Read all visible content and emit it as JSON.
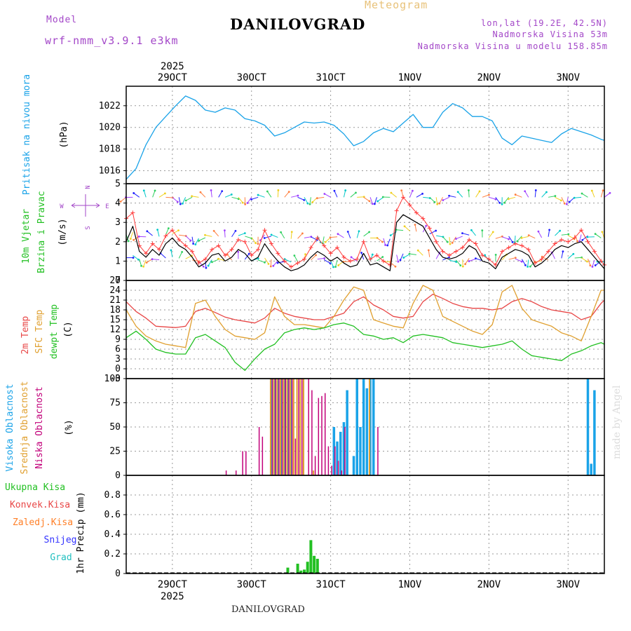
{
  "header": {
    "meteogram_label": "Meteogram",
    "station": "DANILOVGRAD",
    "model_label": "Model",
    "model_name": "wrf-nmm_v3.9.1 e3km",
    "lonlat": "lon,lat (19.2E, 42.5N)",
    "elevation": "Nadmorska Visina 53m",
    "model_elevation": "Nadmorska Visina u modelu 158.85m"
  },
  "footer": {
    "station": "DANILOVGRAD",
    "made_by": "made by Angel"
  },
  "colors": {
    "pressure": "#1aa3e8",
    "wind_speed": "#000000",
    "wind_gust": "#ff3b3b",
    "t2m": "#e84646",
    "tsfc": "#e0a030",
    "dewpt": "#22c022",
    "high_cloud": "#1aa3e8",
    "mid_cloud": "#e0a030",
    "low_cloud": "#c2007a",
    "precip_total": "#22c022",
    "precip_conv": "#e84646",
    "precip_freezing": "#ff7f27",
    "snow": "#3333ff",
    "hail": "#22c0c0"
  },
  "chart_data": [
    {
      "type": "line",
      "title": "Pritisak na nivou mora",
      "ylabel": "(hPa)",
      "ylim": [
        1014.8,
        1023.8
      ],
      "yticks": [
        "1016",
        "1018",
        "1020",
        "1022"
      ],
      "time_axis": {
        "start_hour": 0,
        "end_hour": 145,
        "year": "2025",
        "day_labels": [
          "29OCT",
          "30OCT",
          "31OCT",
          "1NOV",
          "2NOV",
          "3NOV"
        ],
        "day_hours": [
          14,
          38,
          62,
          86,
          110,
          134
        ]
      },
      "x": [
        0,
        3,
        6,
        9,
        12,
        15,
        18,
        21,
        24,
        27,
        30,
        33,
        36,
        39,
        42,
        45,
        48,
        51,
        54,
        57,
        60,
        63,
        66,
        69,
        72,
        75,
        78,
        81,
        84,
        87,
        90,
        93,
        96,
        99,
        102,
        105,
        108,
        111,
        114,
        117,
        120,
        123,
        126,
        129,
        132,
        135,
        138,
        141,
        144,
        145
      ],
      "values": [
        1015.2,
        1016.2,
        1018.4,
        1020.0,
        1021.0,
        1022.0,
        1022.9,
        1022.5,
        1021.6,
        1021.4,
        1021.8,
        1021.6,
        1020.8,
        1020.6,
        1020.2,
        1019.2,
        1019.5,
        1020.0,
        1020.5,
        1020.4,
        1020.5,
        1020.2,
        1019.4,
        1018.3,
        1018.7,
        1019.5,
        1019.9,
        1019.6,
        1020.4,
        1021.2,
        1020.0,
        1020.0,
        1021.4,
        1022.2,
        1021.8,
        1021.0,
        1021.0,
        1020.6,
        1019.0,
        1018.4,
        1019.2,
        1019.0,
        1018.8,
        1018.6,
        1019.4,
        1019.9,
        1019.6,
        1019.3,
        1018.9,
        1018.8
      ]
    },
    {
      "type": "line",
      "title": "10m Vjetar Brzina i Pravac",
      "ylabel": "(m/s)",
      "ylim": [
        0,
        5
      ],
      "yticks": [
        "0",
        "1",
        "2",
        "3",
        "4",
        "5"
      ],
      "compass": {
        "north": "N",
        "south": "S",
        "west": "W",
        "east": "E"
      },
      "series": [
        {
          "name": "speed",
          "x": [
            0,
            2,
            4,
            6,
            8,
            10,
            12,
            14,
            16,
            18,
            20,
            22,
            24,
            26,
            28,
            30,
            32,
            34,
            36,
            38,
            40,
            42,
            44,
            46,
            48,
            50,
            52,
            54,
            56,
            58,
            60,
            62,
            64,
            66,
            68,
            70,
            72,
            74,
            76,
            78,
            80,
            82,
            84,
            86,
            88,
            90,
            92,
            94,
            96,
            98,
            100,
            102,
            104,
            106,
            108,
            110,
            112,
            114,
            116,
            118,
            120,
            122,
            124,
            126,
            128,
            130,
            132,
            134,
            136,
            138,
            140,
            142,
            144,
            145
          ],
          "values": [
            2.0,
            2.8,
            1.5,
            1.2,
            1.6,
            1.3,
            1.9,
            2.2,
            1.8,
            1.6,
            1.2,
            0.7,
            0.9,
            1.3,
            1.4,
            1.0,
            1.2,
            1.6,
            1.4,
            1.0,
            1.2,
            1.9,
            1.4,
            1.0,
            0.7,
            0.5,
            0.6,
            0.8,
            1.2,
            1.5,
            1.3,
            1.0,
            1.2,
            0.9,
            0.7,
            0.8,
            1.4,
            0.8,
            0.9,
            0.7,
            0.5,
            3.0,
            3.4,
            3.2,
            3.0,
            2.8,
            2.2,
            1.6,
            1.2,
            1.1,
            1.2,
            1.4,
            1.8,
            1.6,
            1.0,
            0.9,
            0.6,
            1.2,
            1.4,
            1.6,
            1.5,
            1.3,
            0.7,
            0.9,
            1.2,
            1.6,
            1.8,
            1.7,
            1.9,
            2.0,
            1.6,
            1.2,
            0.8,
            0.6
          ]
        },
        {
          "name": "gust",
          "x": [
            0,
            2,
            4,
            6,
            8,
            10,
            12,
            14,
            16,
            18,
            20,
            22,
            24,
            26,
            28,
            30,
            32,
            34,
            36,
            38,
            40,
            42,
            44,
            46,
            48,
            50,
            52,
            54,
            56,
            58,
            60,
            62,
            64,
            66,
            68,
            70,
            72,
            74,
            76,
            78,
            80,
            82,
            84,
            86,
            88,
            90,
            92,
            94,
            96,
            98,
            100,
            102,
            104,
            106,
            108,
            110,
            112,
            114,
            116,
            118,
            120,
            122,
            124,
            126,
            128,
            130,
            132,
            134,
            136,
            138,
            140,
            142,
            144,
            145
          ],
          "values": [
            3.2,
            3.5,
            1.8,
            1.4,
            1.9,
            1.6,
            2.3,
            2.6,
            2.1,
            1.8,
            1.5,
            0.9,
            1.1,
            1.6,
            1.8,
            1.3,
            1.6,
            2.1,
            2.0,
            1.3,
            1.6,
            2.6,
            1.9,
            1.4,
            1.0,
            0.7,
            0.9,
            1.1,
            1.7,
            2.2,
            1.8,
            1.4,
            1.7,
            1.2,
            1.0,
            1.1,
            2.0,
            1.1,
            1.3,
            1.0,
            0.8,
            3.6,
            4.3,
            3.9,
            3.5,
            3.2,
            2.7,
            2.0,
            1.5,
            1.3,
            1.5,
            1.7,
            2.1,
            1.9,
            1.3,
            1.1,
            0.8,
            1.5,
            1.7,
            1.9,
            1.8,
            1.6,
            0.9,
            1.1,
            1.5,
            1.9,
            2.1,
            2.0,
            2.2,
            2.6,
            2.0,
            1.5,
            1.0,
            0.8
          ]
        }
      ]
    },
    {
      "type": "line",
      "title": "2m Temp / SFC Temp / dewpt Temp",
      "ylabel": "(C)",
      "ylim": [
        -3,
        27
      ],
      "yticks": [
        "-3",
        "0",
        "3",
        "6",
        "9",
        "12",
        "15",
        "18",
        "21",
        "24",
        "27"
      ],
      "series": [
        {
          "name": "2m Temp",
          "x": [
            0,
            3,
            6,
            9,
            12,
            15,
            18,
            21,
            24,
            27,
            30,
            33,
            36,
            39,
            42,
            45,
            48,
            51,
            54,
            57,
            60,
            63,
            66,
            69,
            72,
            75,
            78,
            81,
            84,
            87,
            90,
            93,
            96,
            99,
            102,
            105,
            108,
            111,
            114,
            117,
            120,
            123,
            126,
            129,
            132,
            135,
            138,
            141,
            144,
            145
          ],
          "values": [
            20.5,
            17.5,
            15.5,
            13.0,
            12.8,
            12.6,
            13.0,
            17.5,
            18.5,
            17.2,
            15.8,
            15.0,
            14.5,
            14.0,
            15.5,
            18.5,
            17.0,
            16.0,
            15.5,
            15.0,
            15.0,
            16.0,
            17.0,
            20.5,
            22.0,
            19.5,
            18.0,
            16.0,
            15.5,
            16.0,
            20.5,
            22.8,
            21.5,
            20.0,
            19.0,
            18.5,
            18.5,
            18.0,
            18.5,
            20.5,
            21.5,
            20.5,
            19.0,
            18.0,
            17.5,
            17.0,
            15.0,
            16.0,
            20.0,
            21.0
          ]
        },
        {
          "name": "SFC Temp",
          "x": [
            0,
            3,
            6,
            9,
            12,
            15,
            18,
            21,
            24,
            27,
            30,
            33,
            36,
            39,
            42,
            45,
            48,
            51,
            54,
            57,
            60,
            63,
            66,
            69,
            72,
            75,
            78,
            81,
            84,
            87,
            90,
            93,
            96,
            99,
            102,
            105,
            108,
            111,
            114,
            117,
            120,
            123,
            126,
            129,
            132,
            135,
            138,
            141,
            144,
            145
          ],
          "values": [
            18.0,
            13.0,
            10.0,
            8.5,
            7.5,
            7.0,
            6.5,
            20.0,
            21.0,
            16.0,
            12.0,
            10.0,
            9.5,
            9.0,
            11.0,
            22.0,
            16.0,
            13.5,
            13.5,
            13.0,
            12.5,
            16.0,
            21.0,
            25.0,
            24.0,
            15.0,
            14.0,
            13.0,
            12.5,
            20.0,
            25.5,
            24.0,
            16.0,
            14.5,
            13.0,
            11.5,
            10.5,
            13.5,
            23.5,
            25.5,
            18.5,
            15.0,
            14.0,
            13.0,
            11.0,
            10.0,
            8.5,
            16.0,
            24.0,
            24.0
          ]
        },
        {
          "name": "dewpt Temp",
          "x": [
            0,
            3,
            6,
            9,
            12,
            15,
            18,
            21,
            24,
            27,
            30,
            33,
            36,
            39,
            42,
            45,
            48,
            51,
            54,
            57,
            60,
            63,
            66,
            69,
            72,
            75,
            78,
            81,
            84,
            87,
            90,
            93,
            96,
            99,
            102,
            105,
            108,
            111,
            114,
            117,
            120,
            123,
            126,
            129,
            132,
            135,
            138,
            141,
            144,
            145
          ],
          "values": [
            9.5,
            11.5,
            9.0,
            6.0,
            5.0,
            4.5,
            4.5,
            9.5,
            10.5,
            8.5,
            6.5,
            2.0,
            -0.5,
            3.0,
            6.0,
            7.5,
            11.0,
            12.0,
            12.5,
            12.0,
            12.5,
            13.5,
            14.0,
            13.0,
            10.5,
            10.0,
            9.0,
            9.5,
            8.0,
            10.0,
            10.5,
            10.0,
            9.5,
            8.0,
            7.5,
            7.0,
            6.5,
            7.0,
            7.5,
            8.5,
            6.0,
            4.0,
            3.5,
            3.0,
            2.5,
            4.5,
            5.5,
            7.0,
            8.0,
            7.5
          ]
        }
      ]
    },
    {
      "type": "bar",
      "title": "Visoka Oblacnost / Srednja Oblacnost / Niska Oblacnost",
      "ylabel": "(%)",
      "ylim": [
        0,
        100
      ],
      "yticks": [
        "0",
        "25",
        "50",
        "75",
        "100"
      ],
      "series": [
        {
          "name": "Visoka Oblacnost",
          "x": [
            44,
            45,
            46,
            47,
            48,
            49,
            50,
            63,
            64,
            65,
            66,
            67,
            69,
            70,
            71,
            72,
            73,
            74,
            75,
            140,
            141,
            142
          ],
          "values": [
            100,
            100,
            100,
            100,
            100,
            100,
            100,
            50,
            35,
            45,
            55,
            88,
            20,
            100,
            50,
            100,
            90,
            100,
            100,
            100,
            12,
            88
          ]
        },
        {
          "name": "Srednja Oblacnost",
          "x": [
            44,
            45,
            46,
            47,
            48,
            49,
            50,
            51,
            52,
            53,
            54,
            57,
            74
          ],
          "values": [
            100,
            100,
            100,
            100,
            100,
            100,
            100,
            100,
            100,
            100,
            100,
            5,
            100
          ]
        },
        {
          "name": "Niska Oblacnost",
          "x": [
            30,
            33,
            35,
            36,
            40,
            41,
            44,
            45,
            46,
            47,
            48,
            49,
            50,
            51,
            52,
            53,
            55,
            56,
            57,
            58,
            59,
            60,
            61,
            62,
            63,
            64,
            65,
            66,
            76
          ],
          "values": [
            5,
            5,
            25,
            25,
            50,
            40,
            100,
            100,
            100,
            100,
            100,
            100,
            100,
            38,
            100,
            100,
            100,
            88,
            20,
            80,
            82,
            85,
            30,
            10,
            30,
            15,
            5,
            50,
            50
          ]
        }
      ]
    },
    {
      "type": "bar",
      "title": "1hr Precip",
      "ylabel": "1hr Precip (mm)",
      "ylim": [
        0,
        1.0
      ],
      "yticks": [
        "0",
        "0.2",
        "0.4",
        "0.6",
        "0.8"
      ],
      "legend": [
        "Ukupna Kisa",
        "Konvek.Kisa",
        "Zaledj.Kisa",
        "Snijeg",
        "Grad"
      ],
      "series": [
        {
          "name": "Ukupna Kisa",
          "x": [
            41,
            49,
            52,
            53,
            54,
            55,
            56,
            57,
            58
          ],
          "values": [
            0.01,
            0.06,
            0.1,
            0.03,
            0.04,
            0.12,
            0.34,
            0.18,
            0.15
          ]
        }
      ]
    }
  ]
}
